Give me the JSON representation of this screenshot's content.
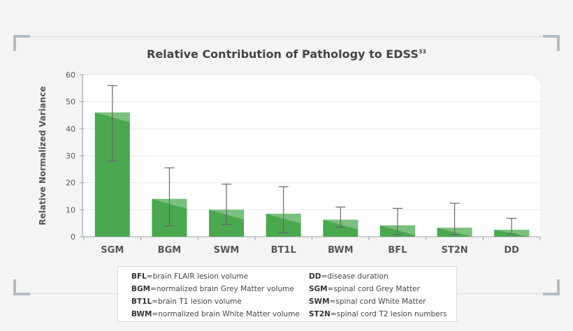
{
  "chart_data": {
    "type": "bar",
    "title": "Relative Contribution of Pathology to EDSS",
    "title_superscript": "33",
    "ylabel": "Relative Normalized Variance",
    "xlabel": "",
    "ylim": [
      0,
      60
    ],
    "yticks": [
      "0",
      "10",
      "20",
      "30",
      "40",
      "50",
      "60"
    ],
    "grid": true,
    "categories": [
      "SGM",
      "BGM",
      "SWM",
      "BT1L",
      "BWM",
      "BFL",
      "ST2N",
      "DD"
    ],
    "values": [
      46,
      14,
      10,
      8.5,
      6.3,
      4.2,
      3.3,
      2.6
    ],
    "error_low": [
      28,
      4,
      4.5,
      1.5,
      3.5,
      0.8,
      0.8,
      1.1
    ],
    "error_high": [
      56,
      25.5,
      19.5,
      18.5,
      11,
      10.5,
      12.4,
      6.8
    ],
    "bar_color": "#4aa84f",
    "highlight_color": "#7cc07f"
  },
  "legend": [
    {
      "abbr": "BFL",
      "text": "=brain FLAIR lesion volume"
    },
    {
      "abbr": "DD",
      "text": "=disease duration"
    },
    {
      "abbr": "BGM",
      "text": "=normalized brain Grey Matter volume"
    },
    {
      "abbr": "SGM",
      "text": "=spinal cord Grey Matter"
    },
    {
      "abbr": "BT1L",
      "text": "=brain T1 lesion volume"
    },
    {
      "abbr": "SWM",
      "text": "=spinal cord White Matter"
    },
    {
      "abbr": "BWM",
      "text": "=normalized brain White Matter volume"
    },
    {
      "abbr": "ST2N",
      "text": "=spinal cord T2 lesion numbers"
    }
  ]
}
